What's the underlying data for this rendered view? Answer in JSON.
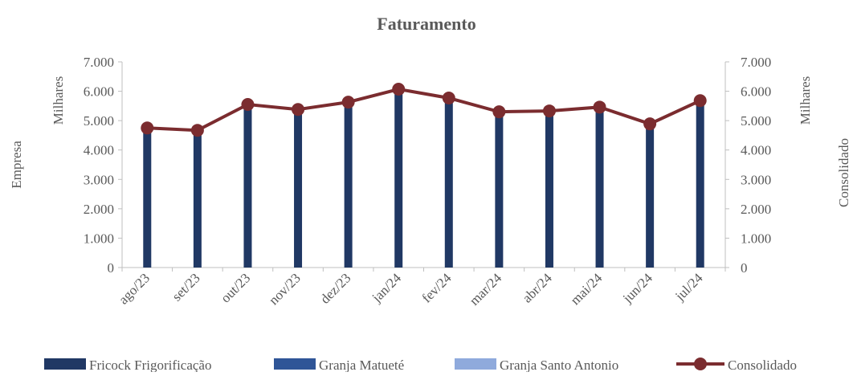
{
  "chart_data": {
    "type": "bar_line",
    "title": "Faturamento",
    "y_label": "Empresa",
    "y_unit": "Milhares",
    "y2_label": "Consolidado",
    "y2_unit": "Milhares",
    "categories": [
      "ago/23",
      "set/23",
      "out/23",
      "nov/23",
      "dez/23",
      "jan/24",
      "fev/24",
      "mar/24",
      "abr/24",
      "mai/24",
      "jun/24",
      "jul/24"
    ],
    "series": [
      {
        "name": "Fricock Frigorificação",
        "type": "bar",
        "color": "#203864",
        "values": [
          4730,
          4730,
          5520,
          5380,
          5550,
          6040,
          5770,
          5270,
          5270,
          5440,
          4860,
          5660
        ]
      },
      {
        "name": "Granja Matueté",
        "type": "bar",
        "color": "#2f5597",
        "values": [
          0,
          0,
          0,
          0,
          0,
          0,
          0,
          0,
          0,
          0,
          0,
          0
        ]
      },
      {
        "name": "Granja Santo Antonio",
        "type": "bar",
        "color": "#8faadc",
        "values": [
          0,
          0,
          0,
          0,
          0,
          0,
          0,
          0,
          0,
          0,
          0,
          0
        ]
      },
      {
        "name": "Consolidado",
        "type": "line",
        "axis": "y2",
        "color": "#7b2c2f",
        "values": [
          4750,
          4670,
          5550,
          5380,
          5630,
          6070,
          5770,
          5300,
          5330,
          5460,
          4890,
          5680
        ]
      }
    ],
    "ylim": [
      0,
      7000
    ],
    "yticks": [
      0,
      {
        "value": 1000,
        "label": "1.000"
      },
      {
        "value": 2000,
        "label": "2.000"
      },
      {
        "value": 3000,
        "label": "3.000"
      },
      {
        "value": 4000,
        "label": "4.000"
      },
      {
        "value": 5000,
        "label": "5.000"
      },
      {
        "value": 6000,
        "label": "6.000"
      },
      {
        "value": 7000,
        "label": "7.000"
      }
    ],
    "y2lim": [
      0,
      7000
    ],
    "y2ticks": [
      0,
      {
        "value": 1000,
        "label": "1.000"
      },
      {
        "value": 2000,
        "label": "2.000"
      },
      {
        "value": 3000,
        "label": "3.000"
      },
      {
        "value": 4000,
        "label": "4.000"
      },
      {
        "value": 5000,
        "label": "5.000"
      },
      {
        "value": 6000,
        "label": "6.000"
      },
      {
        "value": 7000,
        "label": "7.000"
      }
    ],
    "legend": "bottom"
  }
}
